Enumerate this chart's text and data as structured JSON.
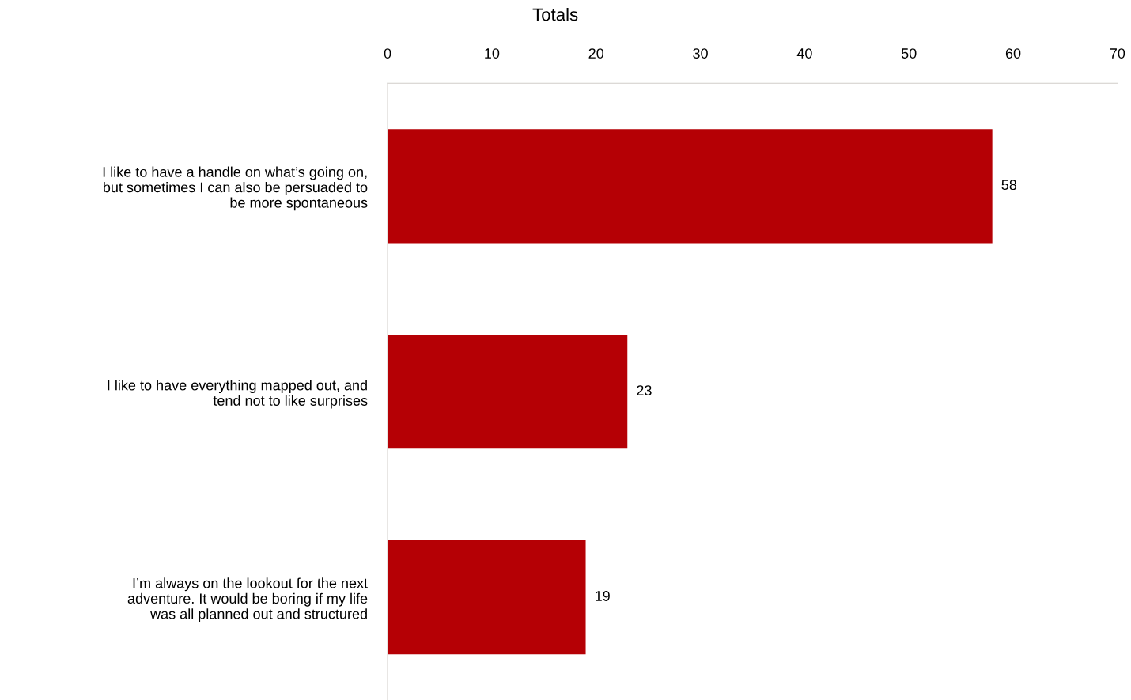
{
  "chart_data": {
    "type": "bar",
    "orientation": "horizontal",
    "title": "Totals",
    "categories": [
      "I like to have a handle on what’s going on,\nbut sometimes I can also be persuaded to\nbe more spontaneous",
      "I like to have everything mapped out, and\ntend not to like surprises",
      "I’m always on the lookout for the next\nadventure. It would be boring if my life\nwas all planned out and structured"
    ],
    "values": [
      58,
      23,
      19
    ],
    "color": "#b50005",
    "xlim": [
      0,
      70
    ],
    "xticks": [
      0,
      10,
      20,
      30,
      40,
      50,
      60,
      70
    ],
    "data_labels": true,
    "grid": false
  }
}
